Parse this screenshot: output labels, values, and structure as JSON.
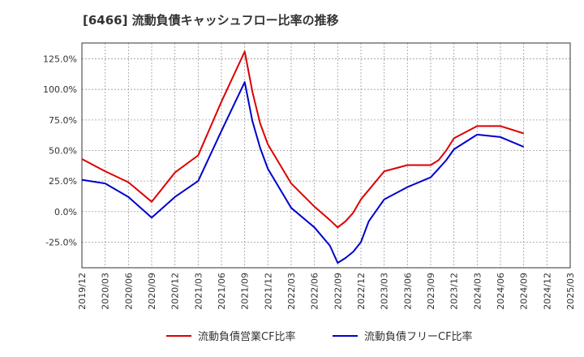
{
  "title": "[6466]  流動負債キャッシュフロー比率の推移",
  "chart_data": {
    "type": "line",
    "title": "[6466]  流動負債キャッシュフロー比率の推移",
    "xlabel": "",
    "ylabel": "",
    "ylim": [
      -46,
      138
    ],
    "y_ticks": [
      125,
      100,
      75,
      50,
      25,
      0,
      -25
    ],
    "y_tick_labels": [
      "125.0%",
      "100.0%",
      "75.0%",
      "50.0%",
      "25.0%",
      "0.0%",
      "-25.0%"
    ],
    "x_range": [
      "2019-12",
      "2025-03"
    ],
    "x_tick_labels": [
      "2019/12",
      "2020/03",
      "2020/06",
      "2020/09",
      "2020/12",
      "2021/03",
      "2021/06",
      "2021/09",
      "2021/12",
      "2022/03",
      "2022/06",
      "2022/09",
      "2022/12",
      "2023/03",
      "2023/06",
      "2023/09",
      "2023/12",
      "2024/03",
      "2024/06",
      "2024/09",
      "2024/12",
      "2025/03"
    ],
    "grid": true,
    "legend_position": "bottom",
    "series": [
      {
        "name": "流動負債営業CF比率",
        "color": "#dd0000",
        "points": [
          [
            "2019-12",
            43
          ],
          [
            "2020-03",
            33
          ],
          [
            "2020-06",
            24
          ],
          [
            "2020-09",
            8
          ],
          [
            "2020-12",
            32
          ],
          [
            "2021-03",
            46
          ],
          [
            "2021-06",
            90
          ],
          [
            "2021-09",
            131
          ],
          [
            "2021-10",
            98
          ],
          [
            "2021-11",
            72
          ],
          [
            "2021-12",
            55
          ],
          [
            "2022-03",
            23
          ],
          [
            "2022-06",
            4
          ],
          [
            "2022-08",
            -7
          ],
          [
            "2022-09",
            -13
          ],
          [
            "2022-10",
            -8
          ],
          [
            "2022-11",
            -1
          ],
          [
            "2022-12",
            10
          ],
          [
            "2023-03",
            33
          ],
          [
            "2023-06",
            38
          ],
          [
            "2023-09",
            38
          ],
          [
            "2023-10",
            42
          ],
          [
            "2023-11",
            50
          ],
          [
            "2023-12",
            60
          ],
          [
            "2024-03",
            70
          ],
          [
            "2024-06",
            70
          ],
          [
            "2024-09",
            64
          ]
        ]
      },
      {
        "name": "流動負債フリーCF比率",
        "color": "#0000cc",
        "points": [
          [
            "2019-12",
            26
          ],
          [
            "2020-03",
            23
          ],
          [
            "2020-06",
            12
          ],
          [
            "2020-09",
            -5
          ],
          [
            "2020-12",
            12
          ],
          [
            "2021-03",
            25
          ],
          [
            "2021-06",
            66
          ],
          [
            "2021-09",
            106
          ],
          [
            "2021-10",
            74
          ],
          [
            "2021-11",
            52
          ],
          [
            "2021-12",
            35
          ],
          [
            "2022-03",
            3
          ],
          [
            "2022-06",
            -13
          ],
          [
            "2022-08",
            -28
          ],
          [
            "2022-09",
            -42
          ],
          [
            "2022-10",
            -38
          ],
          [
            "2022-11",
            -33
          ],
          [
            "2022-12",
            -25
          ],
          [
            "2023-01",
            -8
          ],
          [
            "2023-03",
            10
          ],
          [
            "2023-06",
            20
          ],
          [
            "2023-09",
            28
          ],
          [
            "2023-10",
            35
          ],
          [
            "2023-11",
            42
          ],
          [
            "2023-12",
            51
          ],
          [
            "2024-03",
            63
          ],
          [
            "2024-06",
            61
          ],
          [
            "2024-09",
            53
          ]
        ]
      }
    ]
  }
}
